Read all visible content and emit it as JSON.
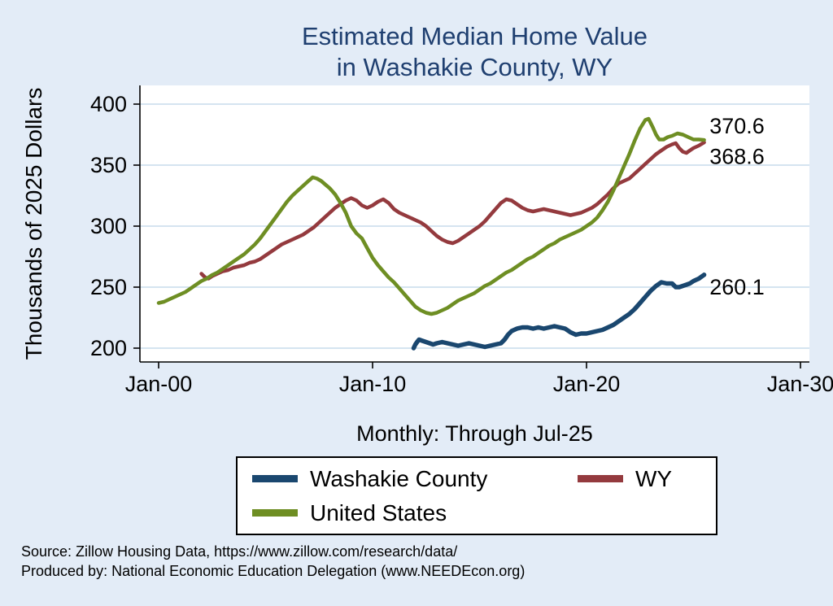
{
  "title": {
    "line1": "Estimated Median Home Value",
    "line2": "in Washakie County, WY"
  },
  "y_axis_label": "Thousands of 2025 Dollars",
  "subtitle": "Monthly: Through Jul-25",
  "source": {
    "line1": "Source: Zillow Housing Data, https://www.zillow.com/research/data/",
    "line2": "Produced by: National Economic Education Delegation (www.NEEDEcon.org)"
  },
  "colors": {
    "background": "#e3ecf7",
    "plot_background": "#ffffff",
    "grid": "#bcd3e6",
    "axis": "#000000",
    "title": "#1f3f70",
    "navy": "#1a476f",
    "maroon": "#943a3e",
    "olive": "#6e8e23"
  },
  "legend": {
    "entries": [
      {
        "label": "Washakie County",
        "color_key": "navy"
      },
      {
        "label": "WY",
        "color_key": "maroon"
      },
      {
        "label": "United States",
        "color_key": "olive"
      }
    ]
  },
  "chart_data": {
    "type": "line",
    "title": "Estimated Median Home Value in Washakie County, WY",
    "xlabel": "",
    "ylabel": "Thousands of 2025 Dollars",
    "xlim": [
      2000,
      2030
    ],
    "ylim": [
      200,
      400
    ],
    "grid": "horizontal",
    "legend_position": "below",
    "x_ticks": [
      {
        "value": 2000,
        "label": "Jan-00"
      },
      {
        "value": 2010,
        "label": "Jan-10"
      },
      {
        "value": 2020,
        "label": "Jan-20"
      },
      {
        "value": 2030,
        "label": "Jan-30"
      }
    ],
    "y_ticks": [
      200,
      250,
      300,
      350,
      400
    ],
    "series": [
      {
        "name": "Washakie County",
        "color_key": "navy",
        "width": 5.5,
        "points": [
          [
            2011.92,
            200
          ],
          [
            2012,
            203
          ],
          [
            2012.08,
            205
          ],
          [
            2012.17,
            207
          ],
          [
            2012.33,
            206
          ],
          [
            2012.5,
            205
          ],
          [
            2012.67,
            204
          ],
          [
            2012.83,
            203
          ],
          [
            2013,
            204
          ],
          [
            2013.25,
            205
          ],
          [
            2013.5,
            204
          ],
          [
            2013.75,
            203
          ],
          [
            2014,
            202
          ],
          [
            2014.25,
            203
          ],
          [
            2014.5,
            204
          ],
          [
            2014.75,
            203
          ],
          [
            2015,
            202
          ],
          [
            2015.25,
            201
          ],
          [
            2015.5,
            202
          ],
          [
            2015.75,
            203
          ],
          [
            2016,
            204
          ],
          [
            2016.17,
            207
          ],
          [
            2016.33,
            211
          ],
          [
            2016.5,
            214
          ],
          [
            2016.75,
            216
          ],
          [
            2017,
            217
          ],
          [
            2017.25,
            217
          ],
          [
            2017.5,
            216
          ],
          [
            2017.75,
            217
          ],
          [
            2018,
            216
          ],
          [
            2018.25,
            217
          ],
          [
            2018.5,
            218
          ],
          [
            2018.75,
            217
          ],
          [
            2019,
            216
          ],
          [
            2019.25,
            213
          ],
          [
            2019.5,
            211
          ],
          [
            2019.75,
            212
          ],
          [
            2020,
            212
          ],
          [
            2020.25,
            213
          ],
          [
            2020.5,
            214
          ],
          [
            2020.75,
            215
          ],
          [
            2021,
            217
          ],
          [
            2021.25,
            219
          ],
          [
            2021.5,
            222
          ],
          [
            2021.75,
            225
          ],
          [
            2022,
            228
          ],
          [
            2022.25,
            232
          ],
          [
            2022.5,
            237
          ],
          [
            2022.75,
            242
          ],
          [
            2023,
            247
          ],
          [
            2023.25,
            251
          ],
          [
            2023.5,
            254
          ],
          [
            2023.75,
            253
          ],
          [
            2024,
            253
          ],
          [
            2024.17,
            250
          ],
          [
            2024.33,
            250
          ],
          [
            2024.5,
            251
          ],
          [
            2024.67,
            252
          ],
          [
            2024.83,
            253
          ],
          [
            2025,
            255
          ],
          [
            2025.25,
            257
          ],
          [
            2025.5,
            260.1
          ]
        ]
      },
      {
        "name": "WY",
        "color_key": "maroon",
        "width": 4.5,
        "points": [
          [
            2002,
            261
          ],
          [
            2002.17,
            258
          ],
          [
            2002.33,
            257
          ],
          [
            2002.5,
            259
          ],
          [
            2002.75,
            261
          ],
          [
            2003,
            263
          ],
          [
            2003.25,
            264
          ],
          [
            2003.5,
            266
          ],
          [
            2003.75,
            267
          ],
          [
            2004,
            268
          ],
          [
            2004.25,
            270
          ],
          [
            2004.5,
            271
          ],
          [
            2004.75,
            273
          ],
          [
            2005,
            276
          ],
          [
            2005.25,
            279
          ],
          [
            2005.5,
            282
          ],
          [
            2005.75,
            285
          ],
          [
            2006,
            287
          ],
          [
            2006.25,
            289
          ],
          [
            2006.5,
            291
          ],
          [
            2006.75,
            293
          ],
          [
            2007,
            296
          ],
          [
            2007.25,
            299
          ],
          [
            2007.5,
            303
          ],
          [
            2007.75,
            307
          ],
          [
            2008,
            311
          ],
          [
            2008.25,
            315
          ],
          [
            2008.5,
            318
          ],
          [
            2008.75,
            321
          ],
          [
            2009,
            323
          ],
          [
            2009.25,
            321
          ],
          [
            2009.5,
            317
          ],
          [
            2009.75,
            315
          ],
          [
            2010,
            317
          ],
          [
            2010.25,
            320
          ],
          [
            2010.5,
            322
          ],
          [
            2010.75,
            319
          ],
          [
            2011,
            314
          ],
          [
            2011.25,
            311
          ],
          [
            2011.5,
            309
          ],
          [
            2011.75,
            307
          ],
          [
            2012,
            305
          ],
          [
            2012.25,
            303
          ],
          [
            2012.5,
            300
          ],
          [
            2012.75,
            296
          ],
          [
            2013,
            292
          ],
          [
            2013.25,
            289
          ],
          [
            2013.5,
            287
          ],
          [
            2013.75,
            286
          ],
          [
            2014,
            288
          ],
          [
            2014.25,
            291
          ],
          [
            2014.5,
            294
          ],
          [
            2014.75,
            297
          ],
          [
            2015,
            300
          ],
          [
            2015.25,
            304
          ],
          [
            2015.5,
            309
          ],
          [
            2015.75,
            314
          ],
          [
            2016,
            319
          ],
          [
            2016.25,
            322
          ],
          [
            2016.5,
            321
          ],
          [
            2016.75,
            318
          ],
          [
            2017,
            315
          ],
          [
            2017.25,
            313
          ],
          [
            2017.5,
            312
          ],
          [
            2017.75,
            313
          ],
          [
            2018,
            314
          ],
          [
            2018.25,
            313
          ],
          [
            2018.5,
            312
          ],
          [
            2018.75,
            311
          ],
          [
            2019,
            310
          ],
          [
            2019.25,
            309
          ],
          [
            2019.5,
            310
          ],
          [
            2019.75,
            311
          ],
          [
            2020,
            313
          ],
          [
            2020.25,
            315
          ],
          [
            2020.5,
            318
          ],
          [
            2020.75,
            322
          ],
          [
            2021,
            326
          ],
          [
            2021.25,
            331
          ],
          [
            2021.5,
            335
          ],
          [
            2021.75,
            337
          ],
          [
            2022,
            339
          ],
          [
            2022.25,
            343
          ],
          [
            2022.5,
            347
          ],
          [
            2022.75,
            351
          ],
          [
            2023,
            355
          ],
          [
            2023.25,
            359
          ],
          [
            2023.5,
            362
          ],
          [
            2023.75,
            365
          ],
          [
            2024,
            367
          ],
          [
            2024.17,
            368
          ],
          [
            2024.33,
            364
          ],
          [
            2024.5,
            361
          ],
          [
            2024.67,
            360
          ],
          [
            2024.83,
            362
          ],
          [
            2025,
            364
          ],
          [
            2025.25,
            366
          ],
          [
            2025.5,
            368.6
          ]
        ]
      },
      {
        "name": "United States",
        "color_key": "olive",
        "width": 4.5,
        "points": [
          [
            2000,
            237
          ],
          [
            2000.25,
            238
          ],
          [
            2000.5,
            240
          ],
          [
            2000.75,
            242
          ],
          [
            2001,
            244
          ],
          [
            2001.25,
            246
          ],
          [
            2001.5,
            249
          ],
          [
            2001.75,
            252
          ],
          [
            2002,
            255
          ],
          [
            2002.25,
            257
          ],
          [
            2002.5,
            260
          ],
          [
            2002.75,
            262
          ],
          [
            2003,
            265
          ],
          [
            2003.25,
            268
          ],
          [
            2003.5,
            271
          ],
          [
            2003.75,
            274
          ],
          [
            2004,
            277
          ],
          [
            2004.25,
            281
          ],
          [
            2004.5,
            285
          ],
          [
            2004.75,
            290
          ],
          [
            2005,
            296
          ],
          [
            2005.25,
            302
          ],
          [
            2005.5,
            308
          ],
          [
            2005.75,
            314
          ],
          [
            2006,
            320
          ],
          [
            2006.25,
            325
          ],
          [
            2006.5,
            329
          ],
          [
            2006.75,
            333
          ],
          [
            2007,
            337
          ],
          [
            2007.2,
            340
          ],
          [
            2007.4,
            339
          ],
          [
            2007.6,
            337
          ],
          [
            2007.8,
            334
          ],
          [
            2008,
            331
          ],
          [
            2008.25,
            326
          ],
          [
            2008.5,
            319
          ],
          [
            2008.75,
            311
          ],
          [
            2009,
            300
          ],
          [
            2009.25,
            294
          ],
          [
            2009.5,
            290
          ],
          [
            2009.75,
            282
          ],
          [
            2010,
            274
          ],
          [
            2010.25,
            268
          ],
          [
            2010.5,
            263
          ],
          [
            2010.75,
            258
          ],
          [
            2011,
            254
          ],
          [
            2011.25,
            249
          ],
          [
            2011.5,
            244
          ],
          [
            2011.75,
            239
          ],
          [
            2012,
            234
          ],
          [
            2012.25,
            231
          ],
          [
            2012.5,
            229
          ],
          [
            2012.75,
            228
          ],
          [
            2013,
            229
          ],
          [
            2013.25,
            231
          ],
          [
            2013.5,
            233
          ],
          [
            2013.75,
            236
          ],
          [
            2014,
            239
          ],
          [
            2014.25,
            241
          ],
          [
            2014.5,
            243
          ],
          [
            2014.75,
            245
          ],
          [
            2015,
            248
          ],
          [
            2015.25,
            251
          ],
          [
            2015.5,
            253
          ],
          [
            2015.75,
            256
          ],
          [
            2016,
            259
          ],
          [
            2016.25,
            262
          ],
          [
            2016.5,
            264
          ],
          [
            2016.75,
            267
          ],
          [
            2017,
            270
          ],
          [
            2017.25,
            273
          ],
          [
            2017.5,
            275
          ],
          [
            2017.75,
            278
          ],
          [
            2018,
            281
          ],
          [
            2018.25,
            284
          ],
          [
            2018.5,
            286
          ],
          [
            2018.75,
            289
          ],
          [
            2019,
            291
          ],
          [
            2019.25,
            293
          ],
          [
            2019.5,
            295
          ],
          [
            2019.75,
            297
          ],
          [
            2020,
            300
          ],
          [
            2020.25,
            303
          ],
          [
            2020.5,
            307
          ],
          [
            2020.75,
            313
          ],
          [
            2021,
            320
          ],
          [
            2021.25,
            329
          ],
          [
            2021.5,
            339
          ],
          [
            2021.75,
            349
          ],
          [
            2022,
            359
          ],
          [
            2022.25,
            370
          ],
          [
            2022.5,
            380
          ],
          [
            2022.75,
            387
          ],
          [
            2022.9,
            388
          ],
          [
            2023.1,
            381
          ],
          [
            2023.25,
            375
          ],
          [
            2023.4,
            371
          ],
          [
            2023.6,
            371
          ],
          [
            2023.8,
            373
          ],
          [
            2024,
            374
          ],
          [
            2024.25,
            376
          ],
          [
            2024.5,
            375
          ],
          [
            2024.75,
            373
          ],
          [
            2025,
            371
          ],
          [
            2025.25,
            371
          ],
          [
            2025.5,
            370.6
          ]
        ]
      }
    ],
    "annotations": [
      {
        "text": "370.6",
        "x": 2025.75,
        "y": 382
      },
      {
        "text": "368.6",
        "x": 2025.75,
        "y": 357
      },
      {
        "text": "260.1",
        "x": 2025.75,
        "y": 250
      }
    ]
  }
}
